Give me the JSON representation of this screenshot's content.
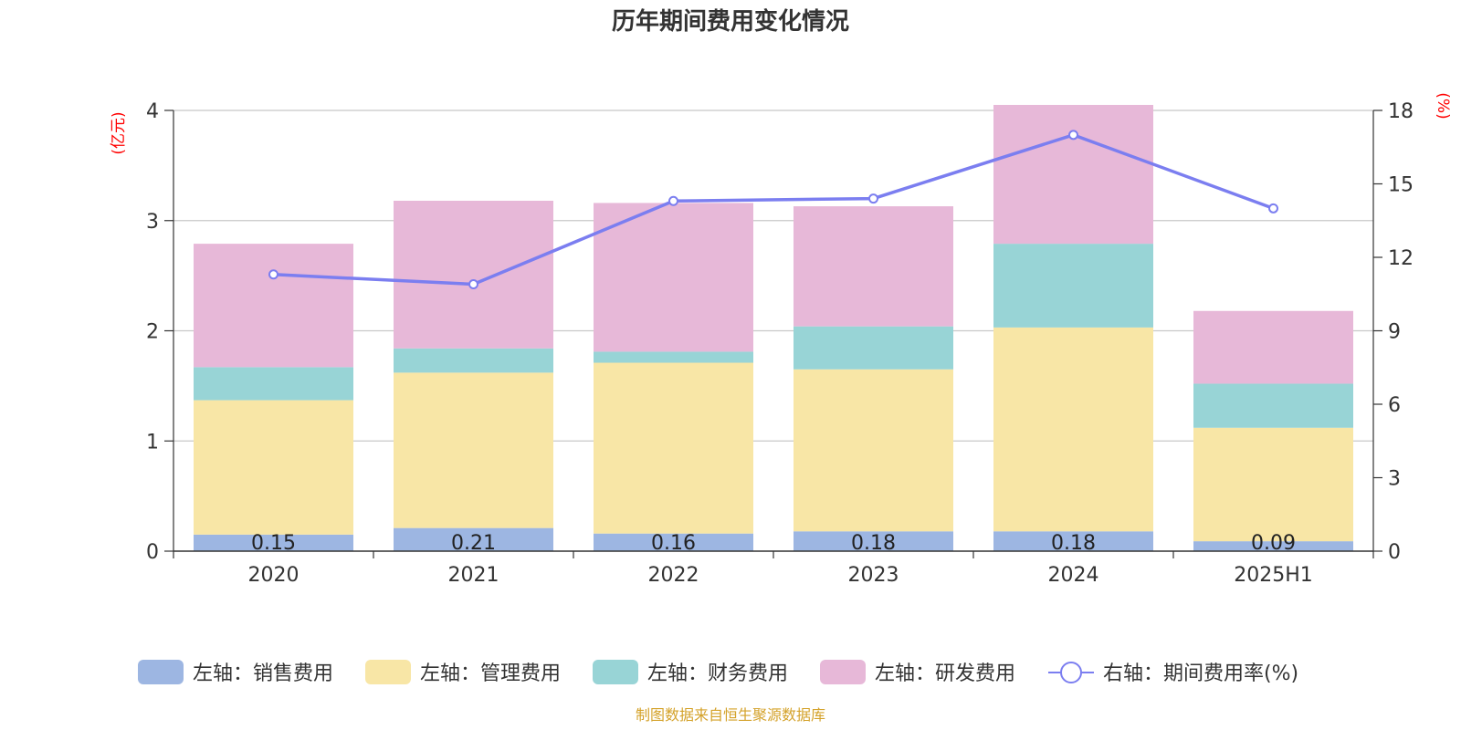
{
  "title": "历年期间费用变化情况",
  "source": "制图数据来自恒生聚源数据库",
  "colors": {
    "sales": "#9db6e2",
    "admin": "#f8e6a6",
    "finance": "#98d4d6",
    "rnd": "#e7b8d8",
    "rate_line": "#7b7ef0",
    "unit_text": "#ff0000",
    "source_text": "#d4a22a",
    "grid": "#c8c8c8",
    "axis": "#333333"
  },
  "chart_data": {
    "type": "bar",
    "stacked": true,
    "title": "历年期间费用变化情况",
    "categories": [
      "2020",
      "2021",
      "2022",
      "2023",
      "2024",
      "2025H1"
    ],
    "y_left": {
      "unit": "(亿元)",
      "ylim": [
        0,
        4
      ],
      "ticks": [
        "0",
        "1",
        "2",
        "3",
        "4"
      ]
    },
    "y_right": {
      "unit": "(%)",
      "ylim": [
        0,
        18
      ],
      "ticks": [
        "0",
        "3",
        "6",
        "9",
        "12",
        "15",
        "18"
      ]
    },
    "grid": true,
    "legend_position": "bottom",
    "series": [
      {
        "key": "sales",
        "name": "左轴：销售费用",
        "axis": "left",
        "type": "bar",
        "values": [
          0.15,
          0.21,
          0.16,
          0.18,
          0.18,
          0.09
        ],
        "labels": [
          "0.15",
          "0.21",
          "0.16",
          "0.18",
          "0.18",
          "0.09"
        ]
      },
      {
        "key": "admin",
        "name": "左轴：管理费用",
        "axis": "left",
        "type": "bar",
        "values": [
          1.22,
          1.41,
          1.55,
          1.47,
          1.85,
          1.03
        ]
      },
      {
        "key": "finance",
        "name": "左轴：财务费用",
        "axis": "left",
        "type": "bar",
        "values": [
          0.3,
          0.22,
          0.1,
          0.39,
          0.76,
          0.4
        ]
      },
      {
        "key": "rnd",
        "name": "左轴：研发费用",
        "axis": "left",
        "type": "bar",
        "values": [
          1.12,
          1.34,
          1.35,
          1.09,
          1.26,
          0.66
        ]
      },
      {
        "key": "rate_line",
        "name": "右轴：期间费用率(%)",
        "axis": "right",
        "type": "line",
        "values": [
          11.3,
          10.9,
          14.3,
          14.4,
          17.0,
          14.0
        ]
      }
    ]
  }
}
